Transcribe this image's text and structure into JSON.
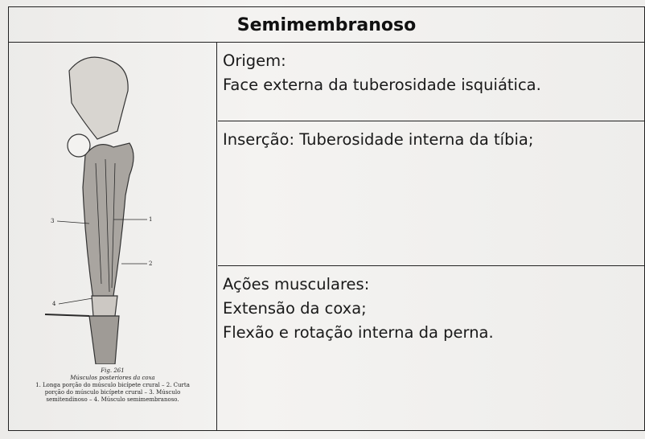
{
  "header": {
    "title": "Semimembranoso"
  },
  "figure": {
    "number": "Fig. 261",
    "title": "Músculos posteriores da coxa",
    "legend": [
      "1. Longa porção do músculo bicípete crural – 2. Curta",
      "porção do músculo bicípete crural – 3. Músculo",
      "semitendinoso – 4. Músculo semimembranoso."
    ],
    "labels": [
      "1",
      "2",
      "3",
      "4"
    ]
  },
  "sections": [
    {
      "lines": [
        "Origem:",
        "Face externa da tuberosidade isquiática."
      ]
    },
    {
      "lines": [
        "Inserção: Tuberosidade interna da tíbia;"
      ]
    },
    {
      "lines": [
        "Ações musculares:",
        "Extensão da coxa;",
        "Flexão e rotação interna da perna."
      ]
    }
  ]
}
